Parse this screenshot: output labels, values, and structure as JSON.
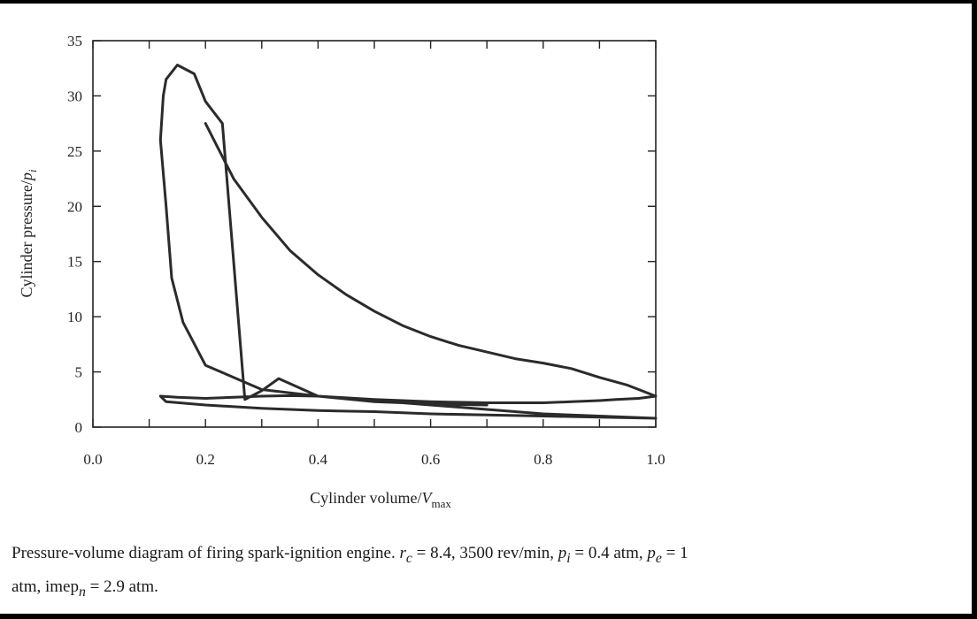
{
  "chart_data": {
    "type": "line",
    "xlabel_prefix": "Cylinder volume/",
    "xlabel_var": "V",
    "xlabel_sub": "max",
    "ylabel_prefix": "Cylinder pressure/",
    "ylabel_var": "p",
    "ylabel_sub": "i",
    "xlim": [
      0.0,
      1.0
    ],
    "ylim": [
      0,
      35
    ],
    "xticks": [
      "0.0",
      "0.2",
      "0.4",
      "0.6",
      "0.8",
      "1.0"
    ],
    "yticks": [
      "0",
      "5",
      "10",
      "15",
      "20",
      "25",
      "30",
      "35"
    ],
    "grid": false,
    "series": [
      {
        "name": "",
        "x": [
          0.2,
          0.25,
          0.3,
          0.35,
          0.4,
          0.45,
          0.5,
          0.55,
          0.6,
          0.65,
          0.7,
          0.75,
          0.8,
          0.85,
          0.9,
          0.95,
          1.0,
          0.97,
          0.93,
          0.9,
          0.85,
          0.8,
          0.75,
          0.7,
          0.65,
          0.6,
          0.55,
          0.5,
          0.45,
          0.4,
          0.35,
          0.3,
          0.25,
          0.2,
          0.15,
          0.12,
          0.13,
          0.2,
          0.3,
          0.4,
          0.5,
          0.6,
          0.7,
          0.8,
          0.9,
          1.0,
          0.95,
          0.9,
          0.8,
          0.7,
          0.6,
          0.5,
          0.4,
          0.3,
          0.2,
          0.16,
          0.14,
          0.13,
          0.12,
          0.125,
          0.13,
          0.15,
          0.18,
          0.2,
          0.23,
          0.27,
          0.3,
          0.33,
          0.4,
          0.5,
          0.6,
          0.7
        ],
        "y": [
          27.5,
          22.5,
          19.0,
          16.0,
          13.8,
          12.0,
          10.5,
          9.2,
          8.2,
          7.4,
          6.8,
          6.2,
          5.8,
          5.3,
          4.5,
          3.8,
          2.8,
          2.6,
          2.5,
          2.4,
          2.3,
          2.2,
          2.2,
          2.2,
          2.25,
          2.3,
          2.4,
          2.5,
          2.65,
          2.8,
          2.85,
          2.8,
          2.7,
          2.6,
          2.7,
          2.8,
          2.3,
          2.0,
          1.7,
          1.5,
          1.4,
          1.2,
          1.1,
          1.0,
          0.9,
          0.8,
          0.9,
          1.0,
          1.2,
          1.6,
          2.0,
          2.4,
          2.8,
          3.4,
          5.6,
          9.5,
          13.5,
          20.0,
          26.0,
          30.0,
          31.5,
          32.8,
          32.0,
          29.5,
          27.5,
          2.5,
          3.3,
          4.4,
          2.8,
          2.3,
          2.1,
          2.0
        ]
      }
    ]
  },
  "caption": {
    "text1": "Pressure-volume diagram of firing spark-ignition engine.",
    "rc_var": "r",
    "rc_sub": "c",
    "rc_val": " = 8.4, 3500 rev/min,",
    "pi_var": "p",
    "pi_sub": "i",
    "pi_val": " = 0.4 atm,",
    "pe_var": "p",
    "pe_sub": "e",
    "pe_val": " = 1",
    "text2": "atm, imep",
    "imep_sub": "n",
    "imep_val": " = 2.9 atm."
  }
}
